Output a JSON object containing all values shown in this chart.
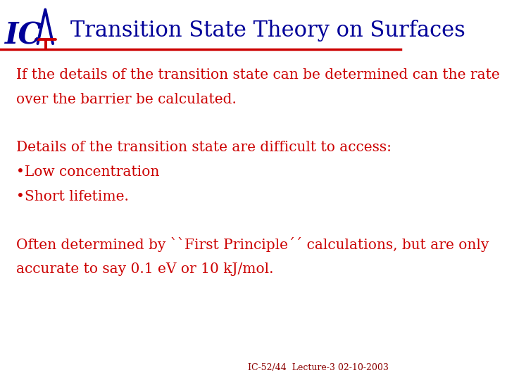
{
  "title": "Transition State Theory on Surfaces",
  "title_color": "#000099",
  "title_fontsize": 22,
  "background_color": "#ffffff",
  "header_line_color": "#cc0000",
  "logo_color_blue": "#000099",
  "logo_color_red": "#cc0000",
  "body_color": "#cc0000",
  "body_fontsize": 14.5,
  "para1_line1": "If the details of the transition state can be determined can the rate",
  "para1_line2": "over the barrier be calculated.",
  "para2_line1": "Details of the transition state are difficult to access:",
  "para2_line2": "•Low concentration",
  "para2_line3": "•Short lifetime.",
  "para3_line1": "Often determined by ``First Principle´´ calculations, but are only",
  "para3_line2": "accurate to say 0.1 eV or 10 kJ/mol.",
  "footer_text": "IC-52/44  Lecture-3 02-10-2003",
  "footer_color": "#8B0000",
  "footer_fontsize": 9
}
